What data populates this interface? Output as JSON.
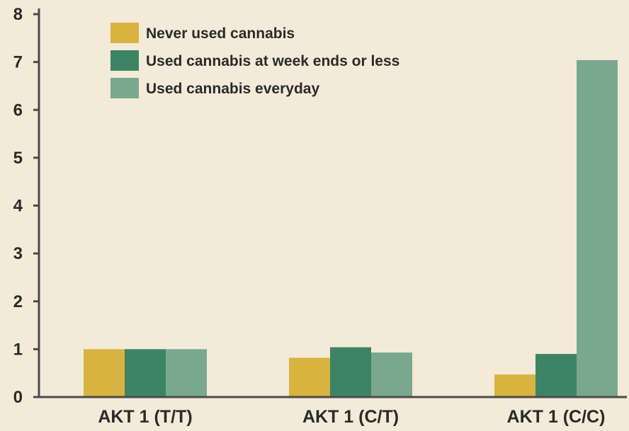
{
  "chart_data": {
    "type": "bar",
    "title": "",
    "xlabel": "",
    "ylabel": "",
    "ylim": [
      0,
      8
    ],
    "yticks": [
      0,
      1,
      2,
      3,
      4,
      5,
      6,
      7,
      8
    ],
    "grid": false,
    "legend_position": "top-left",
    "categories": [
      "AKT 1 (T/T)",
      "AKT 1 (C/T)",
      "AKT 1 (C/C)"
    ],
    "series": [
      {
        "name": "Never used cannabis",
        "color": "#d9b33f",
        "values": [
          1.0,
          0.82,
          0.47
        ]
      },
      {
        "name": "Used cannabis at week ends or less",
        "color": "#3d8465",
        "values": [
          1.0,
          1.04,
          0.9
        ]
      },
      {
        "name": "Used cannabis everyday",
        "color": "#7aa88f",
        "values": [
          1.0,
          0.93,
          7.04
        ]
      }
    ],
    "axis_color": "#4b4b4b",
    "background": "#f3ead8"
  }
}
